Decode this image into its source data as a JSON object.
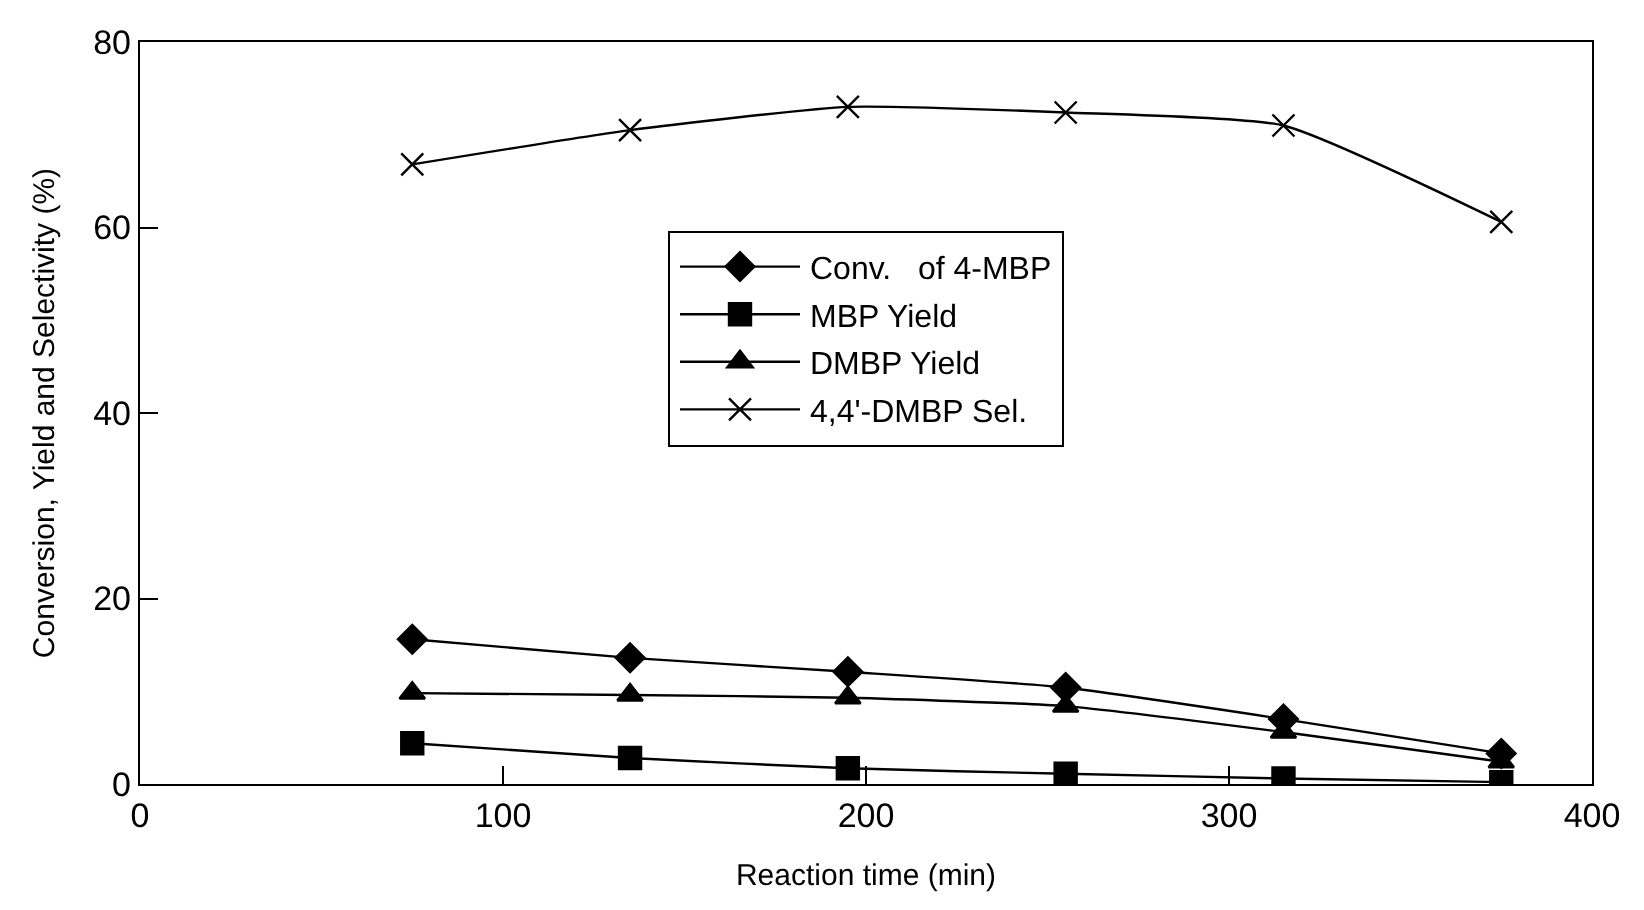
{
  "chart_data": {
    "type": "line",
    "xlabel": "Reaction time (min)",
    "ylabel": "Conversion, Yield and Selectivity (%)",
    "x": [
      75,
      135,
      195,
      255,
      315,
      375
    ],
    "series": [
      {
        "name": "Conv.   of 4-MBP",
        "color": "#000000",
        "marker": "diamond",
        "values": [
          15.6,
          13.6,
          12.1,
          10.4,
          7.0,
          3.3
        ]
      },
      {
        "name": "MBP Yield",
        "color": "#000000",
        "marker": "square",
        "values": [
          4.4,
          2.8,
          1.7,
          1.1,
          0.6,
          0.2
        ]
      },
      {
        "name": "DMBP Yield",
        "color": "#000000",
        "marker": "triangle",
        "values": [
          9.8,
          9.6,
          9.3,
          8.4,
          5.6,
          2.4
        ]
      },
      {
        "name": "4,4'-DMBP Sel.",
        "color": "#000000",
        "marker": "cross",
        "values": [
          66.8,
          70.5,
          73.0,
          72.4,
          71.0,
          60.6
        ]
      }
    ],
    "xlim": [
      0,
      400
    ],
    "xticks": [
      0,
      100,
      200,
      300,
      400
    ],
    "ylim": [
      0,
      80
    ],
    "yticks": [
      0,
      20,
      40,
      60,
      80
    ],
    "legend": "center",
    "line_style": "solid"
  }
}
